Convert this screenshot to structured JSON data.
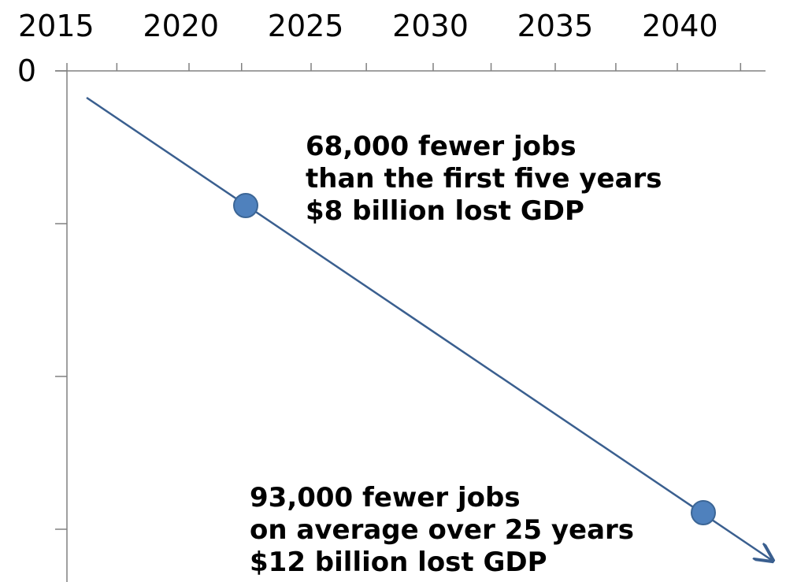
{
  "chart_data": {
    "type": "line",
    "title": "",
    "xlabel": "",
    "ylabel": "",
    "x_ticks": [
      "2015",
      "2020",
      "2025",
      "2030",
      "2035",
      "2040"
    ],
    "y_ticks": [
      "0",
      "",
      "",
      ""
    ],
    "series": [
      {
        "x": [
          2013.8,
          2039.2
        ],
        "y": [
          -0.9,
          -14.8
        ]
      }
    ],
    "points": [
      {
        "x": 2020,
        "y": -4.5
      },
      {
        "x": 2038.8,
        "y": -14.6
      }
    ],
    "annotations": [
      {
        "lines": [
          "68,000 fewer jobs",
          "than the first five years",
          "$8 billion lost GDP"
        ]
      },
      {
        "lines": [
          "93,000 fewer jobs",
          "on average over 25 years",
          "$12 billion lost GDP"
        ]
      }
    ],
    "xlim": [
      2013,
      2041
    ],
    "ylim": [
      -16.5,
      0
    ],
    "x_axis_position": "top",
    "grid": false,
    "legend": "none",
    "colors": {
      "line": "#3a5f8f",
      "marker_fill": "#4f81bd",
      "marker_stroke": "#3c6696",
      "axis": "#808080"
    }
  }
}
